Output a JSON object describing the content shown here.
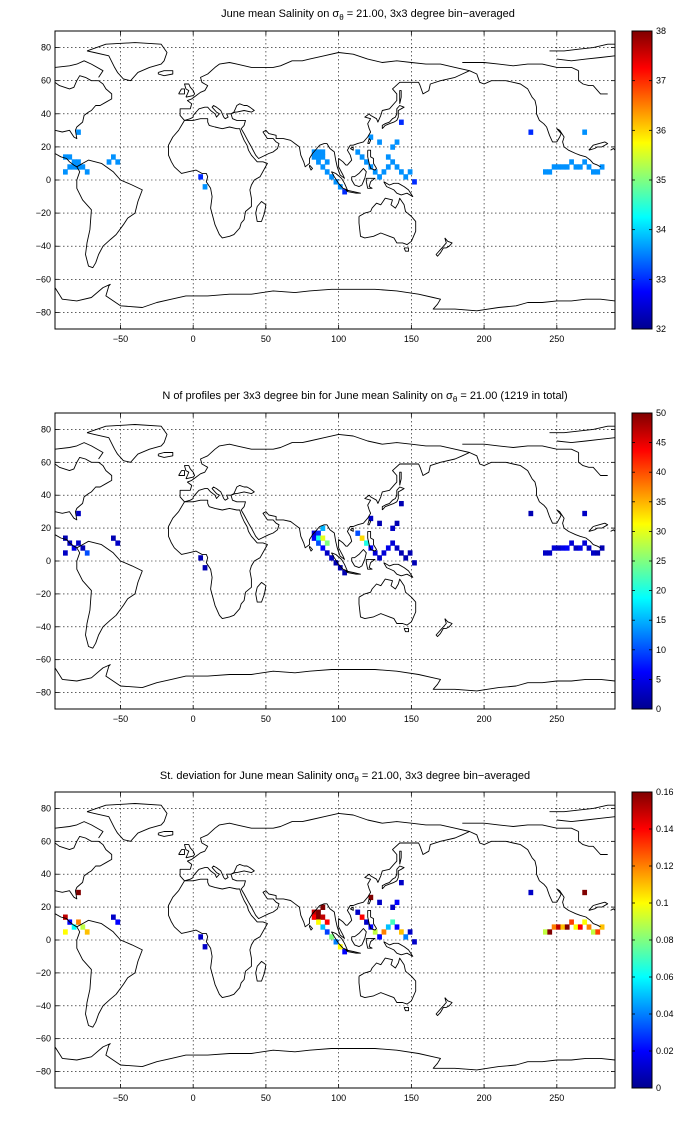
{
  "colormap": [
    "#00008f",
    "#0000ff",
    "#0080ff",
    "#00ffff",
    "#80ff80",
    "#ffff00",
    "#ff8000",
    "#ff0000",
    "#800000"
  ],
  "coastline_color": "#000000",
  "panels": [
    {
      "title_pre": "June mean Salinity on ",
      "title_sym": "σ",
      "title_sub": "θ",
      "title_post": " = 21.00, 3x3 degree bin−averaged",
      "x_ticks": [
        -50,
        0,
        50,
        100,
        150,
        200,
        250
      ],
      "y_ticks": [
        80,
        60,
        40,
        20,
        0,
        -20,
        -40,
        -60,
        -80
      ],
      "xlim": [
        -95,
        290
      ],
      "ylim": [
        -90,
        90
      ],
      "colorbar": {
        "ticks": [
          38,
          37,
          36,
          35,
          34,
          33,
          32
        ],
        "range": [
          32,
          38
        ]
      },
      "cells": [
        [
          -88,
          14,
          33.6
        ],
        [
          -85,
          14,
          33.6
        ],
        [
          -82,
          11,
          33.6
        ],
        [
          -79,
          11,
          33.6
        ],
        [
          -85,
          8,
          33.6
        ],
        [
          -82,
          8,
          33.6
        ],
        [
          -79,
          8,
          33.6
        ],
        [
          -76,
          8,
          33.6
        ],
        [
          -73,
          5,
          33.6
        ],
        [
          -88,
          5,
          33.6
        ],
        [
          -55,
          14,
          33.6
        ],
        [
          -58,
          11,
          33.6
        ],
        [
          -52,
          11,
          33.6
        ],
        [
          -79,
          29,
          33.6
        ],
        [
          5,
          2,
          33.0
        ],
        [
          8,
          -4,
          33.6
        ],
        [
          83,
          17,
          33.6
        ],
        [
          86,
          17,
          33.6
        ],
        [
          89,
          17,
          33.6
        ],
        [
          83,
          14,
          33.6
        ],
        [
          86,
          14,
          33.6
        ],
        [
          89,
          14,
          33.6
        ],
        [
          92,
          11,
          33.6
        ],
        [
          86,
          11,
          33.6
        ],
        [
          89,
          8,
          33.6
        ],
        [
          92,
          5,
          33.6
        ],
        [
          95,
          2,
          33.6
        ],
        [
          98,
          -1,
          33.6
        ],
        [
          101,
          -4,
          33.6
        ],
        [
          104,
          -7,
          33.0
        ],
        [
          113,
          17,
          33.6
        ],
        [
          116,
          14,
          33.6
        ],
        [
          119,
          11,
          33.6
        ],
        [
          122,
          8,
          33.6
        ],
        [
          125,
          5,
          33.6
        ],
        [
          128,
          2,
          33.6
        ],
        [
          131,
          5,
          33.6
        ],
        [
          134,
          8,
          33.6
        ],
        [
          137,
          11,
          33.6
        ],
        [
          140,
          8,
          33.6
        ],
        [
          143,
          5,
          33.6
        ],
        [
          146,
          2,
          33.6
        ],
        [
          137,
          20,
          33.6
        ],
        [
          140,
          23,
          33.6
        ],
        [
          128,
          23,
          33.6
        ],
        [
          122,
          26,
          33.6
        ],
        [
          143,
          35,
          33.0
        ],
        [
          134,
          14,
          33.6
        ],
        [
          149,
          5,
          33.6
        ],
        [
          152,
          -1,
          33.0
        ],
        [
          232,
          29,
          33.0
        ],
        [
          242,
          5,
          33.6
        ],
        [
          245,
          5,
          33.6
        ],
        [
          248,
          8,
          33.6
        ],
        [
          251,
          8,
          33.6
        ],
        [
          254,
          8,
          33.6
        ],
        [
          257,
          8,
          33.6
        ],
        [
          260,
          11,
          33.6
        ],
        [
          263,
          8,
          33.6
        ],
        [
          266,
          8,
          33.6
        ],
        [
          269,
          11,
          33.6
        ],
        [
          272,
          8,
          33.6
        ],
        [
          275,
          5,
          33.6
        ],
        [
          278,
          5,
          33.6
        ],
        [
          281,
          8,
          33.6
        ],
        [
          269,
          29,
          33.6
        ]
      ]
    },
    {
      "title_pre": "N of profiles per 3x3 degree bin for June mean Salinity on ",
      "title_sym": "σ",
      "title_sub": "θ",
      "title_post": " = 21.00 (1219 in total)",
      "x_ticks": [
        -50,
        0,
        50,
        100,
        150,
        200,
        250
      ],
      "y_ticks": [
        80,
        60,
        40,
        20,
        0,
        -20,
        -40,
        -60,
        -80
      ],
      "xlim": [
        -95,
        290
      ],
      "ylim": [
        -90,
        90
      ],
      "colorbar": {
        "ticks": [
          50,
          45,
          40,
          35,
          30,
          25,
          20,
          15,
          10,
          5,
          0
        ],
        "range": [
          0,
          50
        ]
      },
      "cells": [
        [
          -88,
          14,
          2
        ],
        [
          -85,
          11,
          3
        ],
        [
          -82,
          8,
          5
        ],
        [
          -79,
          11,
          3
        ],
        [
          -76,
          8,
          2
        ],
        [
          -88,
          5,
          3
        ],
        [
          -73,
          5,
          10
        ],
        [
          -55,
          14,
          2
        ],
        [
          -52,
          11,
          3
        ],
        [
          -79,
          29,
          3
        ],
        [
          5,
          2,
          2
        ],
        [
          8,
          -4,
          2
        ],
        [
          83,
          17,
          4
        ],
        [
          86,
          17,
          8
        ],
        [
          89,
          20,
          15
        ],
        [
          83,
          14,
          6
        ],
        [
          86,
          14,
          20
        ],
        [
          89,
          14,
          30
        ],
        [
          92,
          11,
          25
        ],
        [
          86,
          11,
          10
        ],
        [
          89,
          8,
          6
        ],
        [
          92,
          5,
          3
        ],
        [
          95,
          2,
          3
        ],
        [
          98,
          -1,
          2
        ],
        [
          101,
          -4,
          2
        ],
        [
          104,
          -7,
          2
        ],
        [
          113,
          17,
          10
        ],
        [
          116,
          14,
          33
        ],
        [
          119,
          11,
          20
        ],
        [
          122,
          8,
          6
        ],
        [
          125,
          5,
          4
        ],
        [
          128,
          2,
          3
        ],
        [
          131,
          5,
          4
        ],
        [
          134,
          8,
          5
        ],
        [
          137,
          11,
          4
        ],
        [
          140,
          8,
          3
        ],
        [
          143,
          5,
          2
        ],
        [
          146,
          2,
          2
        ],
        [
          137,
          20,
          3
        ],
        [
          140,
          23,
          2
        ],
        [
          128,
          23,
          2
        ],
        [
          122,
          26,
          3
        ],
        [
          143,
          35,
          2
        ],
        [
          149,
          5,
          2
        ],
        [
          152,
          -1,
          2
        ],
        [
          232,
          29,
          2
        ],
        [
          242,
          5,
          3
        ],
        [
          245,
          5,
          3
        ],
        [
          248,
          8,
          4
        ],
        [
          251,
          8,
          3
        ],
        [
          254,
          8,
          5
        ],
        [
          257,
          8,
          6
        ],
        [
          260,
          11,
          4
        ],
        [
          263,
          8,
          3
        ],
        [
          266,
          8,
          5
        ],
        [
          269,
          11,
          4
        ],
        [
          272,
          8,
          3
        ],
        [
          275,
          5,
          3
        ],
        [
          278,
          5,
          2
        ],
        [
          281,
          8,
          2
        ],
        [
          269,
          29,
          3
        ]
      ]
    },
    {
      "title_pre": "St. deviation for June mean Salinity on",
      "title_sym": "σ",
      "title_sub": "θ",
      "title_post": " = 21.00, 3x3 degree bin−averaged",
      "x_ticks": [
        -50,
        0,
        50,
        100,
        150,
        200,
        250
      ],
      "y_ticks": [
        80,
        60,
        40,
        20,
        0,
        -20,
        -40,
        -60,
        -80
      ],
      "xlim": [
        -95,
        290
      ],
      "ylim": [
        -90,
        90
      ],
      "colorbar": {
        "ticks": [
          0.16,
          0.14,
          0.12,
          0.1,
          0.08,
          0.06,
          0.04,
          0.02,
          0
        ],
        "range": [
          0,
          0.16
        ]
      },
      "cells": [
        [
          -88,
          14,
          0.15
        ],
        [
          -85,
          11,
          0.02
        ],
        [
          -82,
          8,
          0.06
        ],
        [
          -79,
          11,
          0.12
        ],
        [
          -76,
          8,
          0.09
        ],
        [
          -88,
          5,
          0.1
        ],
        [
          -73,
          5,
          0.11
        ],
        [
          -55,
          14,
          0.01
        ],
        [
          -52,
          11,
          0.02
        ],
        [
          -79,
          29,
          0.16
        ],
        [
          5,
          2,
          0.01
        ],
        [
          8,
          -4,
          0.01
        ],
        [
          83,
          17,
          0.15
        ],
        [
          86,
          17,
          0.16
        ],
        [
          89,
          20,
          0.16
        ],
        [
          83,
          14,
          0.14
        ],
        [
          86,
          14,
          0.16
        ],
        [
          89,
          14,
          0.15
        ],
        [
          92,
          11,
          0.14
        ],
        [
          86,
          11,
          0.1
        ],
        [
          89,
          8,
          0.05
        ],
        [
          92,
          5,
          0.03
        ],
        [
          95,
          2,
          0.08
        ],
        [
          98,
          -1,
          0.04
        ],
        [
          101,
          -4,
          0.1
        ],
        [
          104,
          -7,
          0.02
        ],
        [
          113,
          17,
          0.01
        ],
        [
          116,
          14,
          0.14
        ],
        [
          119,
          11,
          0.01
        ],
        [
          122,
          8,
          0.02
        ],
        [
          125,
          5,
          0.09
        ],
        [
          128,
          2,
          0.02
        ],
        [
          131,
          5,
          0.12
        ],
        [
          134,
          8,
          0.05
        ],
        [
          137,
          11,
          0.07
        ],
        [
          140,
          8,
          0.02
        ],
        [
          143,
          5,
          0.11
        ],
        [
          146,
          2,
          0.04
        ],
        [
          137,
          20,
          0.01
        ],
        [
          140,
          23,
          0.02
        ],
        [
          128,
          23,
          0.01
        ],
        [
          122,
          26,
          0.16
        ],
        [
          143,
          35,
          0.01
        ],
        [
          149,
          5,
          0.01
        ],
        [
          152,
          -1,
          0.01
        ],
        [
          232,
          29,
          0.01
        ],
        [
          242,
          5,
          0.09
        ],
        [
          245,
          5,
          0.16
        ],
        [
          248,
          8,
          0.12
        ],
        [
          251,
          8,
          0.15
        ],
        [
          254,
          8,
          0.11
        ],
        [
          257,
          8,
          0.16
        ],
        [
          260,
          11,
          0.13
        ],
        [
          263,
          8,
          0.1
        ],
        [
          266,
          8,
          0.14
        ],
        [
          269,
          11,
          0.1
        ],
        [
          272,
          8,
          0.12
        ],
        [
          275,
          5,
          0.09
        ],
        [
          278,
          5,
          0.13
        ],
        [
          281,
          8,
          0.11
        ],
        [
          269,
          29,
          0.16
        ]
      ]
    }
  ]
}
